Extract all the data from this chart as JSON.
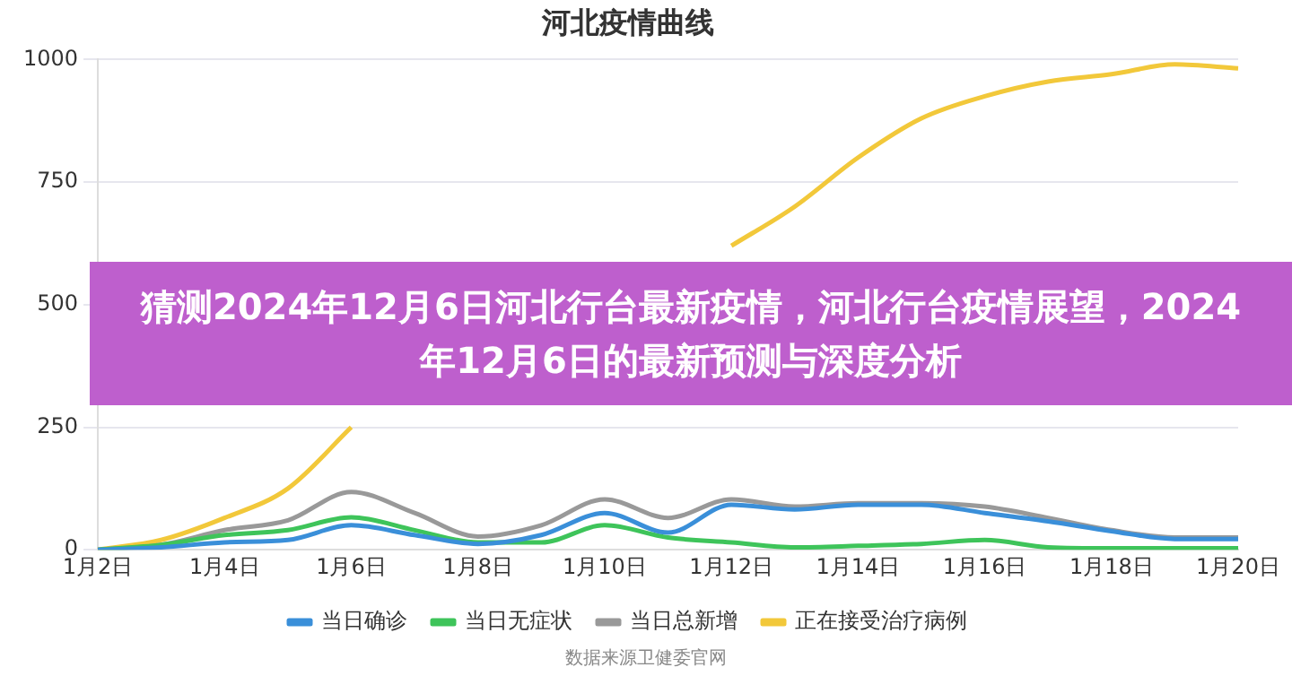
{
  "chart_data": {
    "type": "line",
    "title": "河北疫情曲线",
    "categories": [
      "1月2日",
      null,
      "1月4日",
      null,
      "1月6日",
      null,
      "1月8日",
      null,
      "1月10日",
      null,
      "1月12日",
      null,
      "1月14日",
      null,
      "1月16日",
      null,
      "1月18日",
      null,
      "1月20日"
    ],
    "series": [
      {
        "name": "当日确诊",
        "color": "#3a8fd9",
        "values": [
          0,
          5,
          15,
          20,
          50,
          30,
          12,
          30,
          75,
          35,
          92,
          82,
          92,
          92,
          75,
          58,
          38,
          22,
          22
        ]
      },
      {
        "name": "当日无症状",
        "color": "#3ec45a",
        "values": [
          0,
          10,
          30,
          40,
          66,
          40,
          15,
          15,
          50,
          25,
          15,
          5,
          8,
          12,
          20,
          5,
          3,
          3,
          3
        ]
      },
      {
        "name": "当日总新增",
        "color": "#999999",
        "values": [
          0,
          10,
          40,
          60,
          118,
          75,
          27,
          50,
          103,
          65,
          103,
          88,
          95,
          95,
          88,
          65,
          40,
          25,
          25
        ]
      },
      {
        "name": "正在接受治疗病例",
        "color": "#f2c83a",
        "values": [
          0,
          20,
          65,
          125,
          250,
          null,
          null,
          null,
          null,
          null,
          620,
          700,
          800,
          880,
          925,
          955,
          970,
          990,
          982
        ]
      }
    ],
    "ylim": [
      0,
      1000
    ],
    "yticks": [
      0,
      250,
      500,
      750,
      1000
    ],
    "grid": "y",
    "legend": "bottom",
    "marker": "none",
    "line_style": "solid",
    "annotations": [
      "猜测2024年12月6日河北行台最新疫情，河北行台疫情展望，2024年12月6日的最新预测与深度分析",
      "数据来源卫健委官网"
    ]
  }
}
